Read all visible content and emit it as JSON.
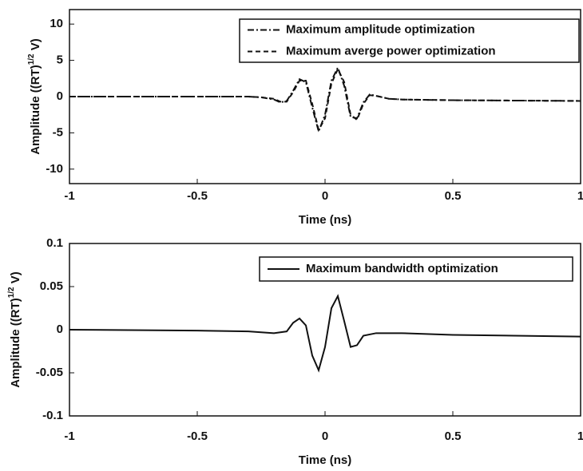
{
  "chart_data": [
    {
      "type": "line",
      "y_label": {
        "before": "Amplitude ((RT)",
        "superscript": "1/2",
        "after": " V)"
      },
      "x_label": "Time (ns)",
      "xlim": [
        -1,
        1
      ],
      "xticks": [
        -1,
        -0.5,
        0,
        0.5,
        1
      ],
      "ylim": [
        -12,
        12
      ],
      "yticks": [
        -10,
        -5,
        0,
        5,
        10
      ],
      "legend": "upper right",
      "x": [
        -1,
        -0.5,
        -0.3,
        -0.25,
        -0.2,
        -0.175,
        -0.15,
        -0.125,
        -0.1,
        -0.075,
        -0.05,
        -0.025,
        0,
        0.025,
        0.05,
        0.075,
        0.1,
        0.125,
        0.15,
        0.175,
        0.2,
        0.25,
        0.3,
        0.5,
        1
      ],
      "series": [
        {
          "name": "Maximum amplitude optimization",
          "color": "#111111",
          "style": "dashdot",
          "values": [
            0,
            0,
            0,
            -0.1,
            -0.4,
            -0.8,
            -0.6,
            0.8,
            2.4,
            2.0,
            -1.5,
            -4.8,
            -2.5,
            2.2,
            4.0,
            1.5,
            -2.8,
            -3.0,
            -0.8,
            0.3,
            0.1,
            -0.3,
            -0.4,
            -0.5,
            -0.6
          ]
        },
        {
          "name": "Maximum averge power optimization",
          "color": "#111111",
          "style": "dashed",
          "values": [
            0,
            0,
            0,
            -0.1,
            -0.3,
            -0.7,
            -0.7,
            0.6,
            2.2,
            2.2,
            -1.0,
            -4.6,
            -3.0,
            1.8,
            3.8,
            2.0,
            -2.5,
            -3.2,
            -1.0,
            0.2,
            0.1,
            -0.3,
            -0.4,
            -0.5,
            -0.6
          ]
        }
      ]
    },
    {
      "type": "line",
      "y_label": {
        "before": "Amplitude ((RT)",
        "superscript": "1/2",
        "after": " V)"
      },
      "x_label": "Time (ns)",
      "xlim": [
        -1,
        1
      ],
      "xticks": [
        -1,
        -0.5,
        0,
        0.5,
        1
      ],
      "ylim": [
        -0.1,
        0.1
      ],
      "yticks": [
        -0.1,
        -0.05,
        0,
        0.05,
        0.1
      ],
      "legend": "upper right",
      "x": [
        -1,
        -0.5,
        -0.3,
        -0.2,
        -0.15,
        -0.125,
        -0.1,
        -0.075,
        -0.05,
        -0.025,
        0,
        0.025,
        0.05,
        0.075,
        0.1,
        0.125,
        0.15,
        0.2,
        0.3,
        0.5,
        1
      ],
      "series": [
        {
          "name": "Maximum bandwidth optimization",
          "color": "#111111",
          "style": "solid",
          "values": [
            0,
            -0.001,
            -0.002,
            -0.004,
            -0.002,
            0.008,
            0.013,
            0.005,
            -0.03,
            -0.047,
            -0.02,
            0.025,
            0.039,
            0.01,
            -0.02,
            -0.018,
            -0.007,
            -0.004,
            -0.004,
            -0.006,
            -0.008
          ]
        }
      ]
    }
  ]
}
